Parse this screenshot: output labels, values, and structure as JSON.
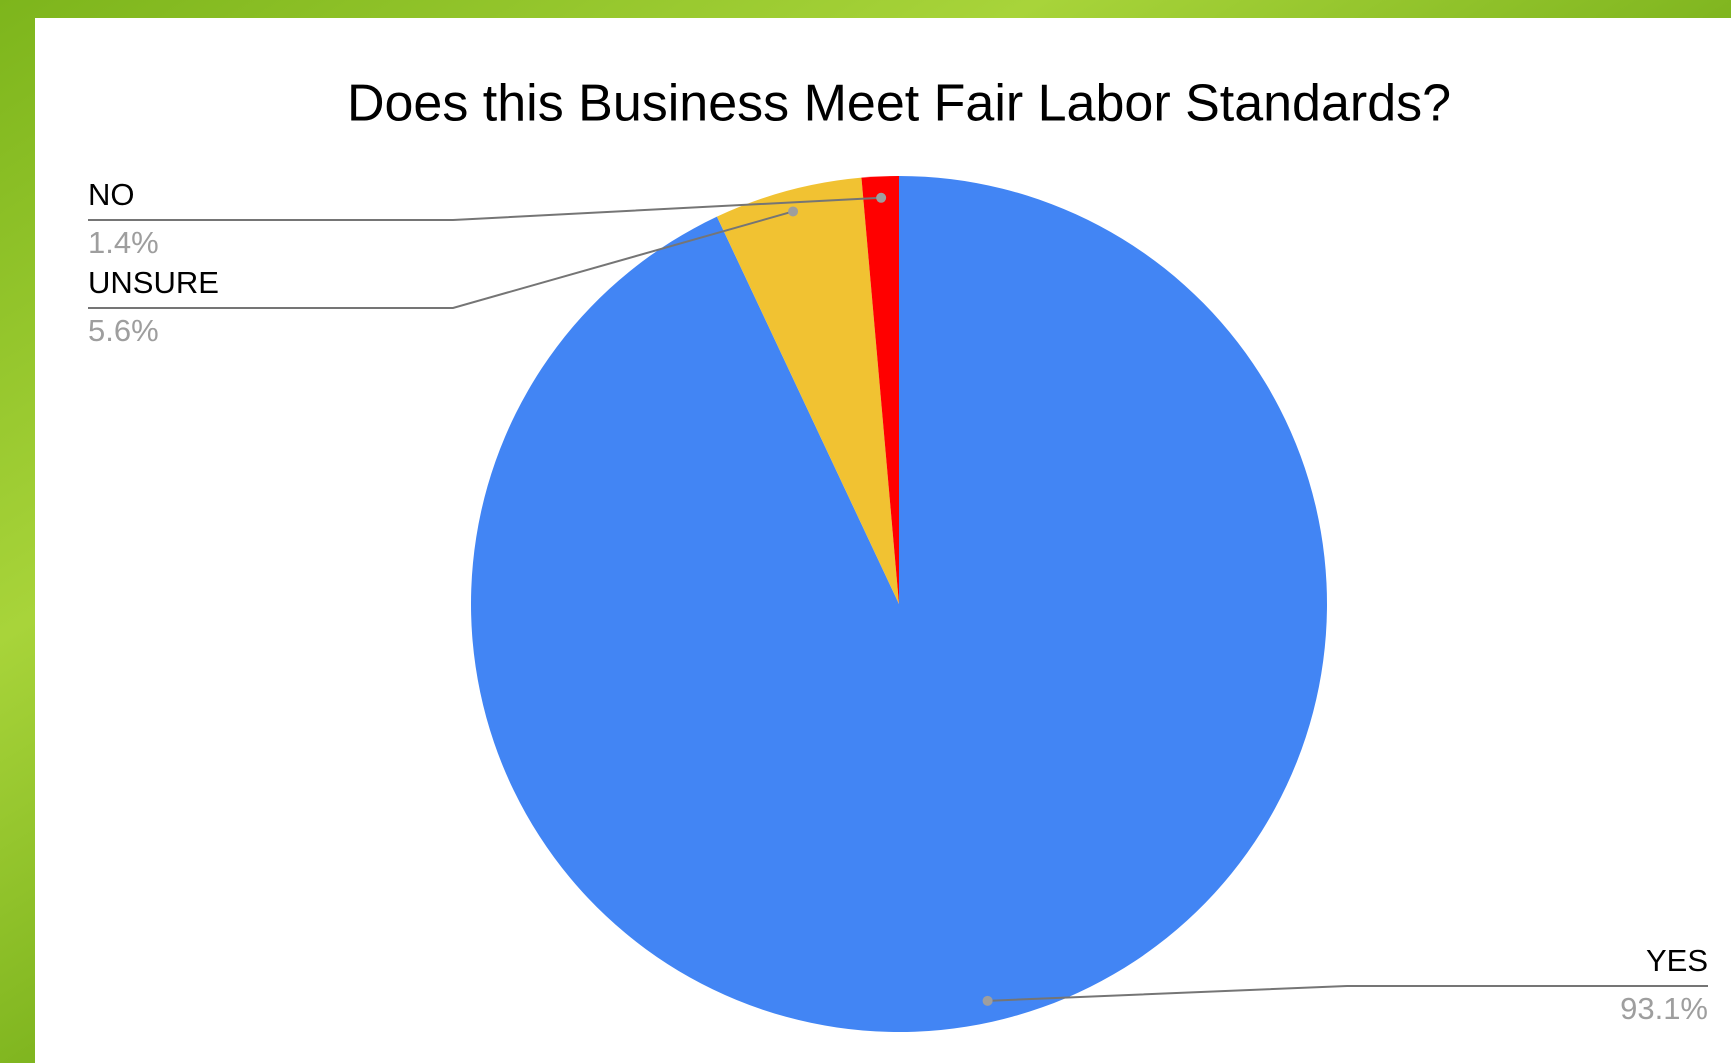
{
  "chart_data": {
    "type": "pie",
    "title": "Does this Business Meet Fair Labor Standards?",
    "categories": [
      "YES",
      "UNSURE",
      "NO"
    ],
    "values": [
      93.1,
      5.6,
      1.4
    ],
    "value_labels": [
      "93.1%",
      "5.6%",
      "1.4%"
    ],
    "colors": [
      "#4285f4",
      "#f1c232",
      "#ff0000"
    ]
  }
}
